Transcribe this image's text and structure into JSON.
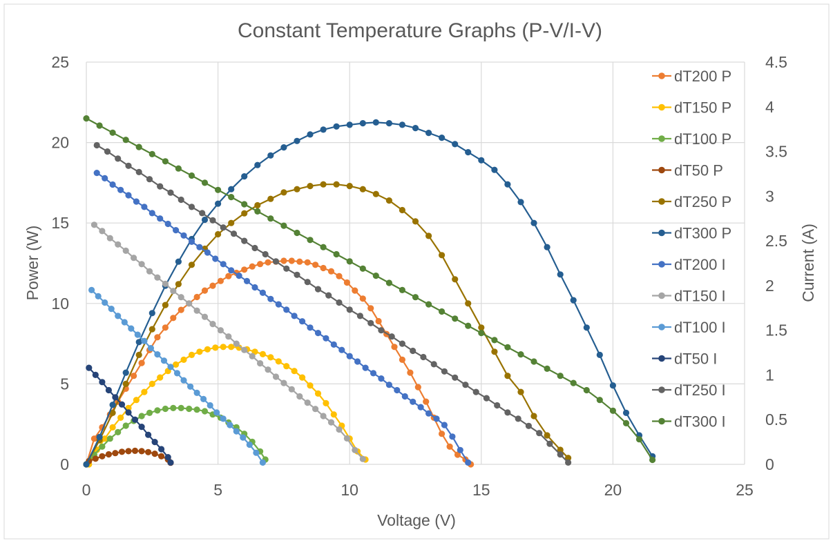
{
  "chart_data": {
    "type": "scatter",
    "title": "Constant Temperature Graphs (P-V/I-V)",
    "xlabel": "Voltage (V)",
    "ylabel": "Power (W)",
    "y2label": "Current (A)",
    "xlim": [
      0,
      25
    ],
    "ylim": [
      0,
      25
    ],
    "y2lim": [
      0,
      4.5
    ],
    "x_ticks": [
      "0",
      "5",
      "10",
      "15",
      "20",
      "25"
    ],
    "y_ticks": [
      "0",
      "5",
      "10",
      "15",
      "20",
      "25"
    ],
    "y2_ticks": [
      "0",
      "0.5",
      "1",
      "1.5",
      "2",
      "2.5",
      "3",
      "3.5",
      "4",
      "4.5"
    ],
    "grid": true,
    "legend_position": "right",
    "series": [
      {
        "name": "dT200 P",
        "axis": "power",
        "color": "#ED7D31",
        "points_x": [
          0,
          0.3,
          0.6,
          0.9,
          1.2,
          1.5,
          1.8,
          2.1,
          2.4,
          2.7,
          3,
          3.3,
          3.6,
          3.9,
          4.2,
          4.5,
          4.8,
          5.1,
          5.4,
          5.7,
          6,
          6.3,
          6.6,
          6.9,
          7.2,
          7.5,
          7.8,
          8.1,
          8.4,
          8.7,
          9,
          9.3,
          9.6,
          9.9,
          10.2,
          10.5,
          10.8,
          11.1,
          11.4,
          11.7,
          12,
          12.3,
          12.6,
          12.9,
          13.2,
          13.5,
          13.8,
          14.1,
          14.4,
          14.6
        ],
        "points_y": [
          0,
          1.6,
          2.3,
          3.1,
          3.9,
          4.7,
          5.5,
          6.3,
          7.1,
          7.9,
          8.5,
          9.1,
          9.6,
          10,
          10.4,
          10.8,
          11.1,
          11.4,
          11.7,
          11.9,
          12.1,
          12.3,
          12.45,
          12.55,
          12.6,
          12.65,
          12.65,
          12.6,
          12.55,
          12.4,
          12.2,
          12,
          11.7,
          11.3,
          10.8,
          10.3,
          9.7,
          8.9,
          8.1,
          7.3,
          6.5,
          5.7,
          4.8,
          3.9,
          2.9,
          1.9,
          1.1,
          0.6,
          0.3,
          0
        ]
      },
      {
        "name": "dT150 P",
        "axis": "power",
        "color": "#FFC000",
        "points_x": [
          0.1,
          0.4,
          0.7,
          1,
          1.3,
          1.6,
          1.9,
          2.2,
          2.5,
          2.8,
          3.1,
          3.4,
          3.7,
          4,
          4.3,
          4.6,
          4.9,
          5.2,
          5.5,
          5.8,
          6.1,
          6.4,
          6.7,
          7,
          7.3,
          7.6,
          7.9,
          8.2,
          8.5,
          8.8,
          9.1,
          9.4,
          9.7,
          10,
          10.3,
          10.6
        ],
        "points_y": [
          0,
          0.9,
          1.6,
          2.3,
          2.9,
          3.5,
          4,
          4.5,
          5,
          5.4,
          5.8,
          6.2,
          6.5,
          6.8,
          7,
          7.15,
          7.25,
          7.3,
          7.3,
          7.25,
          7.15,
          7,
          6.85,
          6.65,
          6.4,
          6.1,
          5.8,
          5.4,
          4.9,
          4.4,
          3.8,
          3.1,
          2.4,
          1.6,
          0.8,
          0.3
        ]
      },
      {
        "name": "dT100 P",
        "axis": "power",
        "color": "#70AD47",
        "points_x": [
          0,
          0.3,
          0.6,
          0.9,
          1.2,
          1.5,
          1.8,
          2.1,
          2.4,
          2.7,
          3,
          3.3,
          3.6,
          3.9,
          4.2,
          4.5,
          4.8,
          5.1,
          5.4,
          5.7,
          6,
          6.3,
          6.6,
          6.8
        ],
        "points_y": [
          0,
          0.6,
          1.1,
          1.6,
          2,
          2.4,
          2.7,
          3,
          3.2,
          3.35,
          3.45,
          3.5,
          3.5,
          3.45,
          3.4,
          3.3,
          3.1,
          2.9,
          2.6,
          2.3,
          1.9,
          1.4,
          0.8,
          0.3
        ]
      },
      {
        "name": "dT50 P",
        "axis": "power",
        "color": "#9E480E",
        "points_x": [
          0.1,
          0.35,
          0.6,
          0.85,
          1.1,
          1.35,
          1.6,
          1.85,
          2.1,
          2.35,
          2.6,
          2.85,
          3.1,
          3.2
        ],
        "points_y": [
          0.2,
          0.35,
          0.5,
          0.62,
          0.7,
          0.78,
          0.82,
          0.84,
          0.82,
          0.76,
          0.66,
          0.5,
          0.3,
          0.1
        ]
      },
      {
        "name": "dT250 P",
        "axis": "power",
        "color": "#997300",
        "points_x": [
          0,
          0.5,
          1,
          1.5,
          2,
          2.5,
          3,
          3.5,
          4,
          4.5,
          5,
          5.5,
          6,
          6.5,
          7,
          7.5,
          8,
          8.5,
          9,
          9.5,
          10,
          10.5,
          11,
          11.5,
          12,
          12.5,
          13,
          13.5,
          14,
          14.5,
          15,
          15.5,
          16,
          16.5,
          17,
          17.5,
          18,
          18.3
        ],
        "points_y": [
          0,
          1.5,
          3.2,
          5,
          6.8,
          8.4,
          9.9,
          11.2,
          12.4,
          13.4,
          14.3,
          15,
          15.6,
          16.1,
          16.5,
          16.9,
          17.1,
          17.3,
          17.4,
          17.4,
          17.3,
          17.1,
          16.8,
          16.4,
          15.8,
          15.1,
          14.2,
          13,
          11.5,
          10,
          8.5,
          7,
          5.5,
          4.5,
          3,
          1.8,
          0.9,
          0.4
        ]
      },
      {
        "name": "dT300 P",
        "axis": "power",
        "color": "#255E91",
        "points_x": [
          0,
          0.5,
          1,
          1.5,
          2,
          2.5,
          3,
          3.5,
          4,
          4.5,
          5,
          5.5,
          6,
          6.5,
          7,
          7.5,
          8,
          8.5,
          9,
          9.5,
          10,
          10.5,
          11,
          11.5,
          12,
          12.5,
          13,
          13.5,
          14,
          14.5,
          15,
          15.5,
          16,
          16.5,
          17,
          17.5,
          18,
          18.5,
          19,
          19.5,
          20,
          20.5,
          21,
          21.5
        ],
        "points_y": [
          0,
          1.7,
          3.7,
          5.7,
          7.6,
          9.4,
          11.1,
          12.6,
          14,
          15.2,
          16.2,
          17.1,
          17.9,
          18.6,
          19.2,
          19.7,
          20.1,
          20.5,
          20.8,
          21,
          21.1,
          21.2,
          21.25,
          21.2,
          21.1,
          20.9,
          20.6,
          20.3,
          19.9,
          19.4,
          18.9,
          18.3,
          17.4,
          16.3,
          15,
          13.5,
          11.8,
          10.2,
          8.5,
          6.8,
          4.9,
          3.2,
          1.8,
          0.5
        ]
      },
      {
        "name": "dT200 I",
        "axis": "current",
        "color": "#4472C4",
        "points_x": [
          0.4,
          0.7,
          1,
          1.3,
          1.6,
          1.9,
          2.2,
          2.5,
          2.8,
          3.1,
          3.4,
          3.7,
          4,
          4.3,
          4.6,
          4.9,
          5.2,
          5.5,
          5.8,
          6.1,
          6.4,
          6.7,
          7,
          7.3,
          7.6,
          7.9,
          8.2,
          8.5,
          8.8,
          9.1,
          9.4,
          9.7,
          10,
          10.3,
          10.6,
          10.9,
          11.2,
          11.5,
          11.8,
          12.1,
          12.4,
          12.7,
          13,
          13.3,
          13.6,
          13.9,
          14.2,
          14.5
        ],
        "points_y": [
          3.26,
          3.2,
          3.13,
          3.07,
          3.01,
          2.94,
          2.88,
          2.81,
          2.75,
          2.69,
          2.62,
          2.56,
          2.49,
          2.43,
          2.37,
          2.3,
          2.24,
          2.17,
          2.11,
          2.05,
          1.98,
          1.92,
          1.85,
          1.79,
          1.73,
          1.66,
          1.6,
          1.53,
          1.47,
          1.41,
          1.34,
          1.28,
          1.21,
          1.15,
          1.08,
          1.02,
          0.96,
          0.89,
          0.83,
          0.76,
          0.7,
          0.64,
          0.57,
          0.51,
          0.44,
          0.31,
          0.16,
          0.02
        ]
      },
      {
        "name": "dT150 I",
        "axis": "current",
        "color": "#A5A5A5",
        "points_x": [
          0.3,
          0.6,
          0.9,
          1.2,
          1.5,
          1.8,
          2.1,
          2.4,
          2.7,
          3,
          3.3,
          3.6,
          3.9,
          4.2,
          4.5,
          4.8,
          5.1,
          5.4,
          5.7,
          6,
          6.3,
          6.6,
          6.9,
          7.2,
          7.5,
          7.8,
          8.1,
          8.4,
          8.7,
          9,
          9.3,
          9.6,
          9.9,
          10.2,
          10.5
        ],
        "points_y": [
          2.68,
          2.61,
          2.53,
          2.46,
          2.39,
          2.31,
          2.24,
          2.16,
          2.09,
          2.02,
          1.94,
          1.87,
          1.8,
          1.72,
          1.65,
          1.57,
          1.5,
          1.43,
          1.35,
          1.28,
          1.21,
          1.13,
          1.06,
          0.98,
          0.91,
          0.84,
          0.76,
          0.69,
          0.62,
          0.54,
          0.47,
          0.39,
          0.29,
          0.16,
          0.06
        ]
      },
      {
        "name": "dT100 I",
        "axis": "current",
        "color": "#5B9BD5",
        "points_x": [
          0.2,
          0.45,
          0.7,
          0.95,
          1.2,
          1.45,
          1.7,
          1.95,
          2.2,
          2.45,
          2.7,
          2.95,
          3.2,
          3.45,
          3.7,
          3.95,
          4.2,
          4.45,
          4.7,
          4.95,
          5.2,
          5.45,
          5.7,
          5.95,
          6.2,
          6.45,
          6.7
        ],
        "points_y": [
          1.95,
          1.88,
          1.81,
          1.74,
          1.66,
          1.59,
          1.52,
          1.45,
          1.38,
          1.3,
          1.23,
          1.16,
          1.09,
          1.02,
          0.94,
          0.87,
          0.8,
          0.73,
          0.66,
          0.58,
          0.51,
          0.44,
          0.37,
          0.3,
          0.22,
          0.13,
          0.02
        ]
      },
      {
        "name": "dT50 I",
        "axis": "current",
        "color": "#264478",
        "points_x": [
          0.1,
          0.35,
          0.6,
          0.85,
          1.1,
          1.35,
          1.6,
          1.85,
          2.1,
          2.35,
          2.6,
          2.85,
          3.1,
          3.2
        ],
        "points_y": [
          1.08,
          1,
          0.92,
          0.83,
          0.75,
          0.67,
          0.58,
          0.5,
          0.42,
          0.33,
          0.25,
          0.17,
          0.08,
          0.02
        ]
      },
      {
        "name": "dT250 I",
        "axis": "current",
        "color": "#636363",
        "points_x": [
          0.4,
          0.8,
          1.2,
          1.6,
          2,
          2.4,
          2.8,
          3.2,
          3.6,
          4,
          4.4,
          4.8,
          5.2,
          5.6,
          6,
          6.4,
          6.8,
          7.2,
          7.6,
          8,
          8.4,
          8.8,
          9.2,
          9.6,
          10,
          10.4,
          10.8,
          11.2,
          11.6,
          12,
          12.4,
          12.8,
          13.2,
          13.6,
          14,
          14.4,
          14.8,
          15.2,
          15.6,
          16,
          16.4,
          16.8,
          17.2,
          17.6,
          18,
          18.3
        ],
        "points_y": [
          3.57,
          3.5,
          3.42,
          3.34,
          3.27,
          3.19,
          3.11,
          3.04,
          2.96,
          2.88,
          2.81,
          2.73,
          2.65,
          2.58,
          2.5,
          2.42,
          2.35,
          2.27,
          2.19,
          2.12,
          2.04,
          1.96,
          1.89,
          1.81,
          1.73,
          1.66,
          1.58,
          1.5,
          1.43,
          1.35,
          1.27,
          1.2,
          1.12,
          1.04,
          0.97,
          0.89,
          0.81,
          0.74,
          0.66,
          0.58,
          0.51,
          0.43,
          0.35,
          0.23,
          0.11,
          0.02
        ]
      },
      {
        "name": "dT300 I",
        "axis": "current",
        "color": "#548235",
        "points_x": [
          0,
          0.5,
          1,
          1.5,
          2,
          2.5,
          3,
          3.5,
          4,
          4.5,
          5,
          5.5,
          6,
          6.5,
          7,
          7.5,
          8,
          8.5,
          9,
          9.5,
          10,
          10.5,
          11,
          11.5,
          12,
          12.5,
          13,
          13.5,
          14,
          14.5,
          15,
          15.5,
          16,
          16.5,
          17,
          17.5,
          18,
          18.5,
          19,
          19.5,
          20,
          20.5,
          21,
          21.5
        ],
        "points_y": [
          3.87,
          3.79,
          3.71,
          3.63,
          3.55,
          3.47,
          3.39,
          3.31,
          3.23,
          3.15,
          3.07,
          2.99,
          2.91,
          2.83,
          2.75,
          2.67,
          2.59,
          2.51,
          2.43,
          2.35,
          2.27,
          2.19,
          2.11,
          2.03,
          1.95,
          1.87,
          1.79,
          1.71,
          1.63,
          1.55,
          1.47,
          1.39,
          1.31,
          1.23,
          1.15,
          1.07,
          0.99,
          0.91,
          0.83,
          0.72,
          0.6,
          0.46,
          0.28,
          0.05
        ]
      }
    ]
  }
}
